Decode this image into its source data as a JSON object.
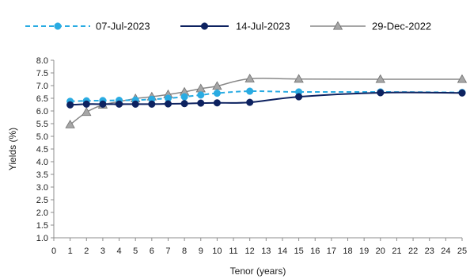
{
  "chart_data": {
    "type": "line",
    "xlabel": "Tenor (years)",
    "ylabel": "Yields (%)",
    "xlim": [
      0,
      25
    ],
    "ylim": [
      1.0,
      8.0
    ],
    "x_ticks": [
      0,
      1,
      2,
      3,
      4,
      5,
      6,
      7,
      8,
      9,
      10,
      11,
      12,
      13,
      14,
      15,
      16,
      17,
      18,
      19,
      20,
      21,
      22,
      23,
      24,
      25
    ],
    "y_ticks": [
      "1.0",
      "1.5",
      "2.0",
      "2.5",
      "3.0",
      "3.5",
      "4.0",
      "4.5",
      "5.0",
      "5.5",
      "6.0",
      "6.5",
      "7.0",
      "7.5",
      "8.0"
    ],
    "grid": false,
    "legend_position": "top",
    "series": [
      {
        "name": "07-Jul-2023",
        "color": "#29abe2",
        "line_style": "dashed",
        "marker": "circle",
        "x": [
          1,
          2,
          3,
          4,
          5,
          6,
          7,
          8,
          9,
          10,
          12,
          15,
          20,
          25
        ],
        "y": [
          6.38,
          6.4,
          6.41,
          6.42,
          6.43,
          6.46,
          6.5,
          6.56,
          6.63,
          6.7,
          6.78,
          6.75,
          6.75,
          6.73
        ]
      },
      {
        "name": "14-Jul-2023",
        "color": "#0d2260",
        "line_style": "solid",
        "marker": "circle",
        "x": [
          1,
          2,
          3,
          4,
          5,
          6,
          7,
          8,
          9,
          10,
          12,
          15,
          20,
          25
        ],
        "y": [
          6.24,
          6.27,
          6.27,
          6.27,
          6.27,
          6.27,
          6.28,
          6.29,
          6.31,
          6.32,
          6.34,
          6.56,
          6.72,
          6.71
        ]
      },
      {
        "name": "29-Dec-2022",
        "color": "#888888",
        "line_style": "solid",
        "marker": "triangle",
        "x": [
          1,
          2,
          3,
          4,
          5,
          6,
          7,
          8,
          9,
          10,
          12,
          15,
          20,
          25
        ],
        "y": [
          5.46,
          5.95,
          6.24,
          6.37,
          6.49,
          6.56,
          6.65,
          6.75,
          6.88,
          6.98,
          7.27,
          7.26,
          7.25,
          7.25
        ]
      }
    ]
  }
}
